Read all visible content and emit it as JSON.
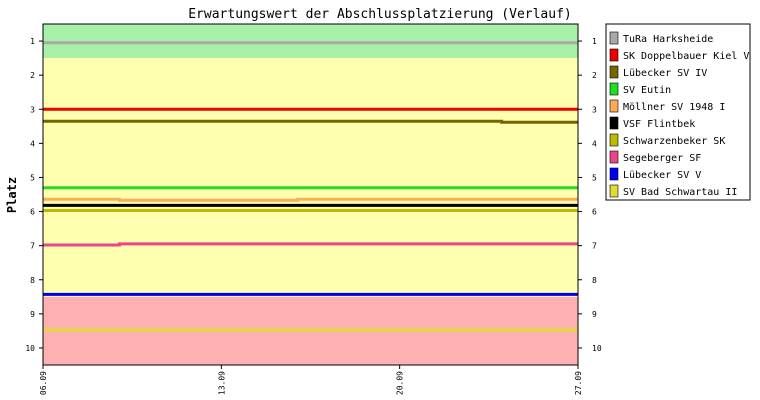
{
  "chart_data": {
    "type": "line",
    "title": "Erwartungswert der Abschlussplatzierung (Verlauf)",
    "ylabel": "Platz",
    "ylim": [
      0.5,
      10.5
    ],
    "y_ticks": [
      1,
      2,
      3,
      4,
      5,
      6,
      7,
      8,
      9,
      10
    ],
    "y_tick_labels": [
      "1",
      "2",
      "3",
      "4",
      "5",
      "6",
      "7",
      "8",
      "9",
      "10"
    ],
    "x_range": [
      "06.09",
      "27.09"
    ],
    "x_ticks": [
      "06.09",
      "13.09",
      "20.09",
      "27.09"
    ],
    "bands": [
      {
        "from": 0.5,
        "to": 1.5,
        "color": "#a8f0a8"
      },
      {
        "from": 1.5,
        "to": 8.5,
        "color": "#ffffb0"
      },
      {
        "from": 8.5,
        "to": 10.5,
        "color": "#ffb0b0"
      }
    ],
    "legend_position": "right",
    "series": [
      {
        "name": "TuRa Harksheide",
        "color": "#a8a8a8",
        "points": [
          [
            "06.09",
            1.05
          ],
          [
            "27.09",
            1.05
          ]
        ]
      },
      {
        "name": "SK Doppelbauer Kiel V",
        "color": "#ee0000",
        "points": [
          [
            "06.09",
            3.0
          ],
          [
            "27.09",
            3.0
          ]
        ]
      },
      {
        "name": "Lübecker SV IV",
        "color": "#776600",
        "points": [
          [
            "06.09",
            3.35
          ],
          [
            "24.09",
            3.35
          ],
          [
            "24.09",
            3.38
          ],
          [
            "27.09",
            3.38
          ]
        ]
      },
      {
        "name": "SV Eutin",
        "color": "#22dd22",
        "points": [
          [
            "06.09",
            5.3
          ],
          [
            "27.09",
            5.3
          ]
        ]
      },
      {
        "name": "Möllner SV 1948 I",
        "color": "#ffaa55",
        "points": [
          [
            "06.09",
            5.64
          ],
          [
            "09.09",
            5.64
          ],
          [
            "09.09",
            5.67
          ],
          [
            "16.09",
            5.67
          ],
          [
            "16.09",
            5.64
          ],
          [
            "27.09",
            5.64
          ]
        ]
      },
      {
        "name": "VSF Flintbek",
        "color": "#000000",
        "points": [
          [
            "06.09",
            5.82
          ],
          [
            "27.09",
            5.82
          ]
        ]
      },
      {
        "name": "Schwarzenbeker SK",
        "color": "#bbbb00",
        "points": [
          [
            "06.09",
            5.97
          ],
          [
            "27.09",
            5.97
          ]
        ]
      },
      {
        "name": "Segeberger SF",
        "color": "#ee4488",
        "points": [
          [
            "06.09",
            6.98
          ],
          [
            "09.09",
            6.98
          ],
          [
            "09.09",
            6.95
          ],
          [
            "27.09",
            6.95
          ]
        ]
      },
      {
        "name": "Lübecker SV V",
        "color": "#0000ee",
        "points": [
          [
            "06.09",
            8.43
          ],
          [
            "27.09",
            8.43
          ]
        ]
      },
      {
        "name": "SV Bad Schwartau II",
        "color": "#dddd33",
        "points": [
          [
            "06.09",
            9.47
          ],
          [
            "27.09",
            9.47
          ]
        ]
      }
    ]
  }
}
